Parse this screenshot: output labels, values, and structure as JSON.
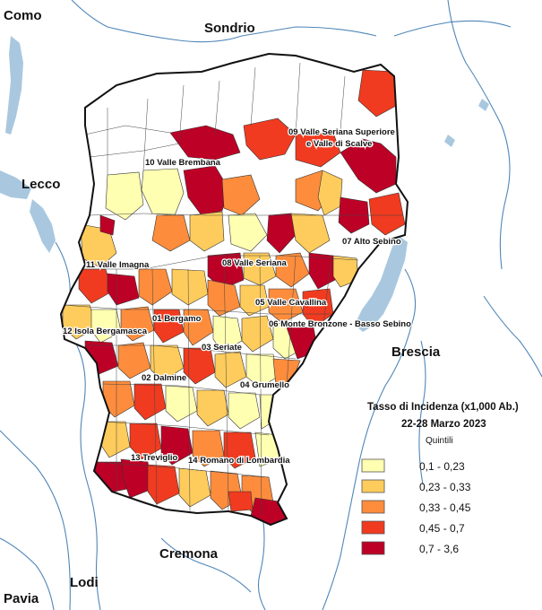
{
  "neighbors": [
    {
      "id": "como",
      "label": "Como"
    },
    {
      "id": "sondrio",
      "label": "Sondrio"
    },
    {
      "id": "lecco",
      "label": "Lecco"
    },
    {
      "id": "brescia",
      "label": "Brescia"
    },
    {
      "id": "cremona",
      "label": "Cremona"
    },
    {
      "id": "lodi",
      "label": "Lodi"
    },
    {
      "id": "pavia",
      "label": "Pavia"
    }
  ],
  "districts": [
    {
      "id": "d09a",
      "label": "09  Valle Seriana Superiore"
    },
    {
      "id": "d09b",
      "label": "e Valle di Scalve"
    },
    {
      "id": "d10",
      "label": "10  Valle Brembana"
    },
    {
      "id": "d07",
      "label": "07  Alto Sebino"
    },
    {
      "id": "d11",
      "label": "11  Valle Imagna"
    },
    {
      "id": "d08",
      "label": "08  Valle Seriana"
    },
    {
      "id": "d05",
      "label": "05  Valle Cavallina"
    },
    {
      "id": "d06",
      "label": "06  Monte Bronzone - Basso Sebino"
    },
    {
      "id": "d01",
      "label": "01  Bergamo"
    },
    {
      "id": "d12",
      "label": "12  Isola Bergamasca"
    },
    {
      "id": "d03",
      "label": "03  Seriate"
    },
    {
      "id": "d02",
      "label": "02  Dalmine"
    },
    {
      "id": "d04",
      "label": "04  Grumello"
    },
    {
      "id": "d13",
      "label": "13  Treviglio"
    },
    {
      "id": "d14",
      "label": "14  Romano di Lombardia"
    }
  ],
  "legend": {
    "title": "Tasso di Incidenza (x1,000 Ab.)",
    "period": "22-28 Marzo 2023",
    "subtitle": "Quintili",
    "classes": [
      {
        "label": "0,1 - 0,23",
        "color": "#ffffb2"
      },
      {
        "label": "0,23 - 0,33",
        "color": "#fecc5c"
      },
      {
        "label": "0,33 - 0,45",
        "color": "#fd8d3c"
      },
      {
        "label": "0,45 - 0,7",
        "color": "#f03b20"
      },
      {
        "label": "0,7 - 3,6",
        "color": "#bd0026"
      }
    ]
  },
  "colors": {
    "lake": "#a9c8df",
    "river": "#4f86b8",
    "province_border": "#111111",
    "municipality_border": "#333333",
    "no_data": "#ffffff"
  }
}
